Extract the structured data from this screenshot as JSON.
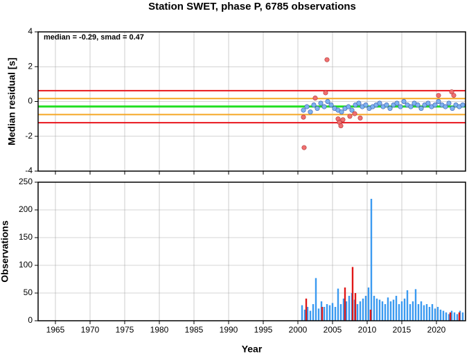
{
  "title": "Station SWET, phase P, 6785 observations",
  "chart_data": [
    {
      "type": "scatter",
      "ylabel": "Median residual [s]",
      "annotation": "median = -0.29, smad = 0.47",
      "xlim": [
        1962.5,
        2024.2
      ],
      "xticks": [
        1965,
        1970,
        1975,
        1980,
        1985,
        1990,
        1995,
        2000,
        2005,
        2010,
        2015,
        2020
      ],
      "ylim": [
        -4,
        4
      ],
      "yticks": [
        -4,
        -2,
        0,
        2,
        4
      ],
      "grid": true,
      "hlines": [
        {
          "value": 0.62,
          "color": "#e8141c"
        },
        {
          "value": 0.17,
          "color": "#f5a623"
        },
        {
          "value": -0.29,
          "color": "#22e022"
        },
        {
          "value": -0.75,
          "color": "#f5a623"
        },
        {
          "value": -1.22,
          "color": "#e8141c"
        }
      ],
      "series": [
        {
          "color": "#7fb2f0",
          "x": [
            2000.8,
            2001.3,
            2001.8,
            2002.3,
            2002.8,
            2003.3,
            2003.8,
            2004.3,
            2004.8,
            2005.3,
            2005.8,
            2006.3,
            2006.8,
            2007.3,
            2007.8,
            2008.3,
            2008.8,
            2009.3,
            2009.8,
            2010.3,
            2010.8,
            2011.3,
            2011.8,
            2012.3,
            2012.8,
            2013.3,
            2013.8,
            2014.3,
            2014.8,
            2015.3,
            2015.8,
            2016.3,
            2016.8,
            2017.3,
            2017.8,
            2018.3,
            2018.8,
            2019.3,
            2019.8,
            2020.3,
            2020.8,
            2021.3,
            2021.8,
            2022.3,
            2022.8,
            2023.3,
            2023.8
          ],
          "values": [
            -0.5,
            -0.3,
            -0.6,
            -0.2,
            -0.4,
            -0.1,
            -0.3,
            0.0,
            -0.2,
            -0.4,
            -0.5,
            -0.6,
            -0.4,
            -0.3,
            -0.5,
            -0.2,
            -0.1,
            -0.3,
            -0.2,
            -0.4,
            -0.3,
            -0.2,
            -0.1,
            -0.3,
            -0.2,
            -0.4,
            -0.2,
            -0.1,
            -0.3,
            0.0,
            -0.2,
            -0.3,
            -0.1,
            -0.2,
            -0.4,
            -0.2,
            -0.1,
            -0.3,
            -0.2,
            0.0,
            -0.2,
            -0.3,
            -0.1,
            -0.4,
            -0.2,
            -0.3,
            -0.2
          ]
        },
        {
          "color": "#f07070",
          "x": [
            2000.9,
            2000.8,
            2002.5,
            2004.0,
            2004.2,
            2005.8,
            2006.0,
            2006.2,
            2006.5,
            2007.5,
            2008.2,
            2009.0,
            2020.3,
            2022.2,
            2022.5
          ],
          "values": [
            -2.65,
            -0.9,
            0.2,
            0.5,
            2.4,
            -1.0,
            -1.2,
            -1.4,
            -1.05,
            -0.85,
            -0.7,
            -0.95,
            0.35,
            0.55,
            0.35
          ]
        }
      ]
    },
    {
      "type": "bar",
      "ylabel": "Observations",
      "xlabel": "Year",
      "xlim": [
        1962.5,
        2024.2
      ],
      "xticks": [
        1965,
        1970,
        1975,
        1980,
        1985,
        1990,
        1995,
        2000,
        2005,
        2010,
        2015,
        2020
      ],
      "ylim": [
        0,
        250
      ],
      "yticks": [
        0,
        50,
        100,
        150,
        200,
        250
      ],
      "grid": true,
      "series": [
        {
          "color": "#3a9af0",
          "x": [
            2000.6,
            2001.0,
            2001.4,
            2001.8,
            2002.2,
            2002.6,
            2003.0,
            2003.4,
            2003.8,
            2004.2,
            2004.6,
            2005.0,
            2005.4,
            2005.8,
            2006.2,
            2006.6,
            2007.0,
            2007.4,
            2007.8,
            2008.2,
            2008.6,
            2009.0,
            2009.4,
            2009.8,
            2010.2,
            2010.6,
            2011.0,
            2011.4,
            2011.8,
            2012.2,
            2012.6,
            2013.0,
            2013.4,
            2013.8,
            2014.2,
            2014.6,
            2015.0,
            2015.4,
            2015.8,
            2016.2,
            2016.6,
            2017.0,
            2017.4,
            2017.8,
            2018.2,
            2018.6,
            2019.0,
            2019.4,
            2019.8,
            2020.2,
            2020.6,
            2021.0,
            2021.4,
            2021.8,
            2022.2,
            2022.6,
            2023.0,
            2023.4,
            2023.8
          ],
          "values": [
            28,
            20,
            25,
            18,
            30,
            77,
            22,
            35,
            25,
            30,
            28,
            32,
            25,
            58,
            30,
            40,
            35,
            45,
            50,
            38,
            30,
            35,
            40,
            45,
            60,
            220,
            45,
            40,
            38,
            35,
            30,
            42,
            35,
            38,
            45,
            30,
            35,
            40,
            55,
            30,
            35,
            57,
            30,
            35,
            28,
            30,
            25,
            30,
            22,
            25,
            20,
            18,
            15,
            12,
            18,
            15,
            12,
            18,
            15
          ]
        },
        {
          "color": "#e01818",
          "x": [
            2001.2,
            2003.5,
            2006.8,
            2007.9,
            2008.3,
            2010.5,
            2022.0,
            2023.3
          ],
          "values": [
            40,
            25,
            60,
            97,
            50,
            20,
            15,
            15
          ]
        }
      ]
    }
  ]
}
